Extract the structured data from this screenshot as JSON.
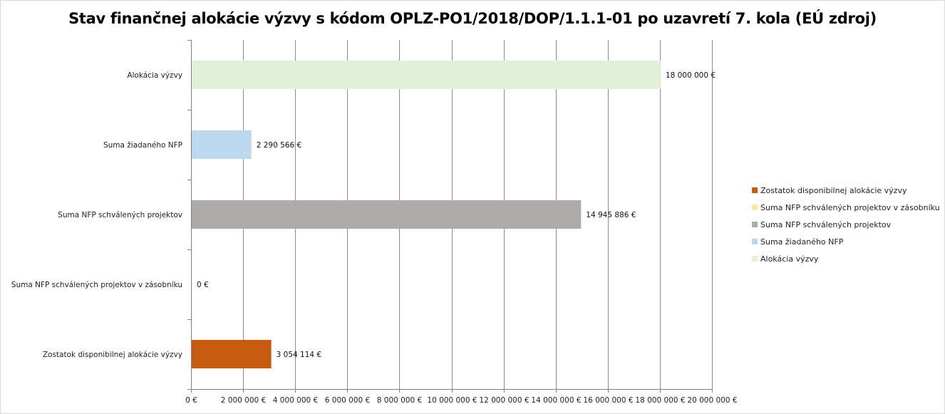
{
  "chart_data": {
    "type": "bar",
    "orientation": "horizontal",
    "title": "Stav finančnej alokácie výzvy s kódom OPLZ-PO1/2018/DOP/1.1.1-01 po uzavretí 7. kola (EÚ zdroj)",
    "categories": [
      "Alokácia výzvy",
      "Suma žiadaného NFP",
      "Suma NFP schválených projektov",
      "Suma NFP schválených projektov v zásobníku",
      "Zostatok disponibilnej alokácie výzvy"
    ],
    "values": [
      18000000,
      2290566,
      14945886,
      0,
      3054114
    ],
    "data_labels": [
      "18 000 000 €",
      "2 290 566 €",
      "14 945 886 €",
      "0 €",
      "3 054 114 €"
    ],
    "colors": [
      "#e2efd9",
      "#bdd7ee",
      "#aeaaaa",
      "#ffe699",
      "#c55a11"
    ],
    "xlim": [
      0,
      20000000
    ],
    "xticks": [
      0,
      2000000,
      4000000,
      6000000,
      8000000,
      10000000,
      12000000,
      14000000,
      16000000,
      18000000,
      20000000
    ],
    "xtick_labels": [
      "0 €",
      "2 000 000 €",
      "4 000 000 €",
      "6 000 000 €",
      "8 000 000 €",
      "10 000 000 €",
      "12 000 000 €",
      "14 000 000 €",
      "16 000 000 €",
      "18 000 000 €",
      "20 000 000 €"
    ],
    "grid": true,
    "legend_position": "right",
    "legend": [
      {
        "label": "Zostatok disponibilnej alokácie výzvy",
        "color": "#c55a11"
      },
      {
        "label": "Suma NFP schválených projektov v zásobníku",
        "color": "#ffe699"
      },
      {
        "label": "Suma NFP schválených projektov",
        "color": "#aeaaaa"
      },
      {
        "label": "Suma žiadaného NFP",
        "color": "#bdd7ee"
      },
      {
        "label": "Alokácia výzvy",
        "color": "#e2efd9"
      }
    ]
  }
}
